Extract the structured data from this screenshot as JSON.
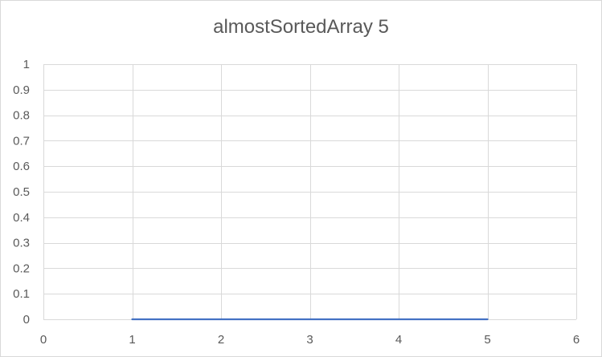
{
  "chart_data": {
    "type": "scatter",
    "title": "almostSortedArray 5",
    "xlabel": "",
    "ylabel": "",
    "xlim": [
      0,
      6
    ],
    "ylim": [
      0,
      1
    ],
    "x_ticks": [
      "0",
      "1",
      "2",
      "3",
      "4",
      "5",
      "6"
    ],
    "y_ticks": [
      "0",
      "0.1",
      "0.2",
      "0.3",
      "0.4",
      "0.5",
      "0.6",
      "0.7",
      "0.8",
      "0.9",
      "1"
    ],
    "grid": true,
    "legend": "none",
    "series": [
      {
        "color": "#4472c4",
        "line": true,
        "markers": false,
        "points": [
          {
            "x": 1,
            "y": 0
          },
          {
            "x": 2,
            "y": 0
          },
          {
            "x": 3,
            "y": 0
          },
          {
            "x": 4,
            "y": 0
          },
          {
            "x": 5,
            "y": 0
          }
        ]
      }
    ],
    "grid_color": "#d9d9d9",
    "text_color": "#595959"
  }
}
